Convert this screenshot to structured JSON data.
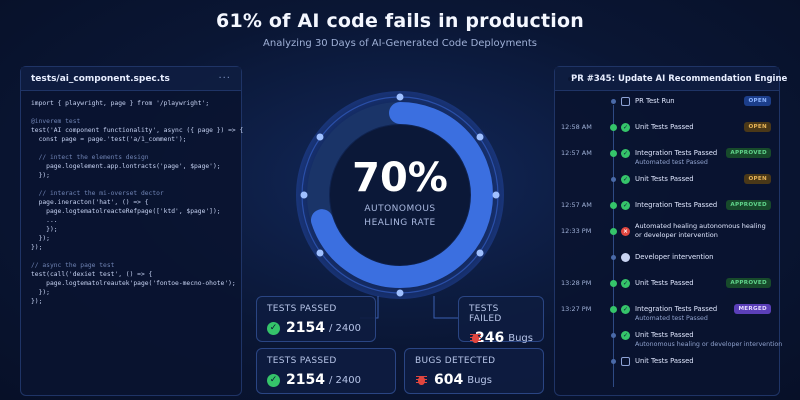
{
  "header": {
    "title": "61% of AI code fails in production",
    "subtitle": "Analyzing 30 Days of AI-Generated Code Deployments"
  },
  "code_panel": {
    "filename": "tests/ai_component.spec.ts",
    "more_icon": "ellipsis-icon",
    "lines": [
      "import { playwright, page } from '/playwright';",
      "",
      "@inverem test",
      "test('AI component functionality', async ({ page }) => {",
      "  const page = page.'test('a/1_comment');",
      "",
      "  // intect the elements design",
      "    page.logelement.app.lontracts('page', $page');",
      "  });",
      "",
      "  // interact the mi-overset dector",
      "  page.ineracton('hat', () => {",
      "    page.logtematolreacteRefpage(['ktd', $page']);",
      "    ...",
      "    });",
      "  });",
      "});",
      "",
      "// async the page test",
      "test(call('dexiet test', () => {",
      "    page.logtematolreautek'page('fontoe-mecno-ohote');",
      "  });",
      "});"
    ]
  },
  "ring": {
    "percent": 70,
    "value_text": "70%",
    "label_line1": "AUTONOMOUS",
    "label_line2": "HEALING RATE",
    "accent": "#3b6fe0",
    "track": "#1a3468"
  },
  "stats": {
    "tests_passed_1": {
      "label": "TESTS PASSED",
      "value": "2154",
      "suffix": "/ 2400",
      "icon": "check-circle-icon"
    },
    "tests_failed": {
      "label": "TESTS FAILED",
      "value": "246",
      "suffix": "Bugs",
      "icon": "bug-icon"
    },
    "tests_passed_2": {
      "label": "TESTS PASSED",
      "value": "2154",
      "suffix": "/ 2400",
      "icon": "check-circle-icon"
    },
    "bugs_detected": {
      "label": "BUGS DETECTED",
      "value": "604",
      "suffix": "Bugs",
      "icon": "bug-icon"
    }
  },
  "pr_panel": {
    "title": "PR #345: Update AI Recommendation Engine",
    "icon": "github-icon",
    "items": [
      {
        "time": "",
        "label": "PR Test Run",
        "badge": "OPEN",
        "badge_style": "open-blue",
        "icon": "merge-icon"
      },
      {
        "time": "12:58 AM",
        "label": "Unit Tests Passed",
        "badge": "OPEN",
        "badge_style": "open",
        "icon": "check-icon"
      },
      {
        "time": "12:57 AM",
        "label": "Integration Tests Passed",
        "badge": "APPROVED",
        "badge_style": "approved",
        "icon": "check-icon",
        "sub": "Automated test Passed"
      },
      {
        "time": "",
        "label": "Unit Tests Passed",
        "badge": "OPEN",
        "badge_style": "open",
        "icon": "check-icon"
      },
      {
        "time": "12:57 AM",
        "label": "Integration Tests Passed",
        "badge": "APPROVED",
        "badge_style": "approved",
        "icon": "check-icon"
      },
      {
        "time": "12:33 PM",
        "label": "Automated healing autonomous healing",
        "label2": "or developer intervention",
        "badge": "",
        "badge_style": "",
        "icon": "x-icon"
      },
      {
        "time": "",
        "label": "Developer intervention",
        "badge": "",
        "badge_style": "",
        "icon": "github-icon"
      },
      {
        "time": "13:28 PM",
        "label": "Unit Tests Passed",
        "badge": "APPROVED",
        "badge_style": "approved",
        "icon": "check-icon"
      },
      {
        "time": "13:27 PM",
        "label": "Integration Tests Passed",
        "badge": "MERGED",
        "badge_style": "merged",
        "icon": "check-icon",
        "sub": "Automated test Passed"
      },
      {
        "time": "",
        "label": "Unit Tests Passed",
        "badge": "",
        "badge_style": "",
        "icon": "check-icon",
        "sub": "Autonomous healing or developer intervention"
      },
      {
        "time": "",
        "label": "Unit Tests Passed",
        "badge": "",
        "badge_style": "",
        "icon": "merge-icon"
      }
    ]
  }
}
